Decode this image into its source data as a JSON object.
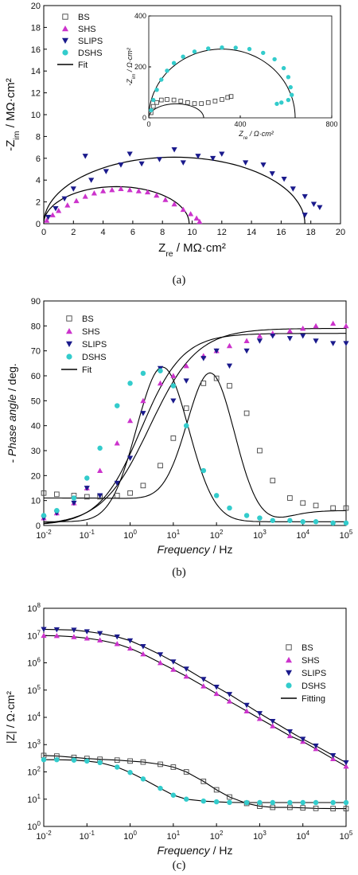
{
  "colors": {
    "BS": "#444444",
    "SHS": "#cc33cc",
    "SLIPS": "#1a1a8c",
    "DSHS": "#33cccc",
    "Fit": "#000000"
  },
  "chart_data": [
    {
      "id": "a",
      "type": "scatter",
      "caption": "(a)",
      "xlabel": "Z_re / MΩ·cm²",
      "ylabel": "-Z_im / MΩ·cm²",
      "xlim": [
        0,
        20
      ],
      "ylim": [
        0,
        20
      ],
      "xticks": [
        0,
        2,
        4,
        6,
        8,
        10,
        12,
        14,
        16,
        18,
        20
      ],
      "yticks": [
        0,
        2,
        4,
        6,
        8,
        10,
        12,
        14,
        16,
        18,
        20
      ],
      "legend": [
        "BS",
        "SHS",
        "SLIPS",
        "DSHS",
        "Fit"
      ],
      "legend_position": "top-left",
      "series": [
        {
          "name": "SHS",
          "marker": "triangle-up",
          "points": [
            [
              0.2,
              0.3
            ],
            [
              0.6,
              0.8
            ],
            [
              1.0,
              1.2
            ],
            [
              1.6,
              1.7
            ],
            [
              2.2,
              2.1
            ],
            [
              2.8,
              2.5
            ],
            [
              3.4,
              2.8
            ],
            [
              4.0,
              3.0
            ],
            [
              4.6,
              3.1
            ],
            [
              5.2,
              3.2
            ],
            [
              5.8,
              3.1
            ],
            [
              6.4,
              3.0
            ],
            [
              7.0,
              2.9
            ],
            [
              7.6,
              2.6
            ],
            [
              8.2,
              2.2
            ],
            [
              8.8,
              1.8
            ],
            [
              9.4,
              1.3
            ],
            [
              9.9,
              0.9
            ],
            [
              10.3,
              0.5
            ],
            [
              10.5,
              0.2
            ]
          ]
        },
        {
          "name": "SLIPS",
          "marker": "triangle-down",
          "points": [
            [
              0.3,
              0.6
            ],
            [
              0.8,
              1.4
            ],
            [
              1.4,
              2.3
            ],
            [
              2.0,
              3.2
            ],
            [
              2.8,
              6.2
            ],
            [
              3.2,
              4.0
            ],
            [
              4.2,
              4.8
            ],
            [
              5.2,
              5.4
            ],
            [
              5.8,
              6.4
            ],
            [
              6.6,
              5.5
            ],
            [
              7.8,
              5.9
            ],
            [
              8.8,
              6.8
            ],
            [
              9.4,
              5.6
            ],
            [
              10.4,
              6.2
            ],
            [
              11.4,
              6.0
            ],
            [
              12.0,
              6.4
            ],
            [
              13.6,
              5.6
            ],
            [
              14.8,
              5.4
            ],
            [
              15.4,
              4.6
            ],
            [
              16.2,
              4.1
            ],
            [
              16.8,
              3.2
            ],
            [
              17.6,
              2.5
            ],
            [
              18.2,
              1.8
            ],
            [
              18.6,
              1.5
            ],
            [
              17.6,
              0.8
            ]
          ]
        },
        {
          "name": "Fit",
          "line": true,
          "arcs": [
            [
              0,
              9.8
            ],
            [
              0,
              17.6
            ]
          ]
        }
      ],
      "inset": {
        "xlabel": "Z_re / Ω·cm²",
        "ylabel": "-Z_im / Ω·cm²",
        "xlim": [
          0,
          800
        ],
        "ylim": [
          0,
          400
        ],
        "xticks": [
          0,
          400,
          800
        ],
        "yticks": [
          0,
          200,
          400
        ],
        "series": [
          {
            "name": "BS",
            "marker": "square-open",
            "points": [
              [
                10,
                20
              ],
              [
                20,
                45
              ],
              [
                35,
                60
              ],
              [
                55,
                70
              ],
              [
                80,
                72
              ],
              [
                110,
                70
              ],
              [
                140,
                66
              ],
              [
                170,
                60
              ],
              [
                200,
                56
              ],
              [
                230,
                56
              ],
              [
                260,
                60
              ],
              [
                290,
                66
              ],
              [
                320,
                72
              ],
              [
                345,
                80
              ],
              [
                360,
                84
              ]
            ]
          },
          {
            "name": "DSHS",
            "marker": "circle",
            "points": [
              [
                10,
                30
              ],
              [
                20,
                70
              ],
              [
                35,
                110
              ],
              [
                55,
                150
              ],
              [
                80,
                185
              ],
              [
                110,
                215
              ],
              [
                150,
                240
              ],
              [
                200,
                260
              ],
              [
                260,
                272
              ],
              [
                320,
                276
              ],
              [
                380,
                275
              ],
              [
                440,
                270
              ],
              [
                500,
                255
              ],
              [
                550,
                230
              ],
              [
                590,
                195
              ],
              [
                610,
                160
              ],
              [
                620,
                120
              ],
              [
                625,
                90
              ],
              [
                610,
                70
              ],
              [
                580,
                60
              ],
              [
                560,
                55
              ]
            ]
          },
          {
            "name": "Fit",
            "line": true,
            "arcs": [
              [
                0,
                640
              ],
              [
                0,
                240
              ]
            ]
          }
        ]
      }
    },
    {
      "id": "b",
      "type": "scatter",
      "caption": "(b)",
      "xlabel": "Frequency / Hz",
      "ylabel": "- Phase angle / deg.",
      "xscale": "log",
      "xlim": [
        0.01,
        100000
      ],
      "ylim": [
        0,
        90
      ],
      "xtick_labels": [
        "10⁻²",
        "10⁻¹",
        "10⁰",
        "10¹",
        "10²",
        "10³",
        "10⁴",
        "10⁵"
      ],
      "yticks": [
        0,
        10,
        20,
        30,
        40,
        50,
        60,
        70,
        80,
        90
      ],
      "legend": [
        "BS",
        "SHS",
        "SLIPS",
        "DSHS",
        "Fit"
      ],
      "legend_position": "top-left",
      "series": [
        {
          "name": "BS",
          "marker": "square-open",
          "x": [
            0.01,
            0.02,
            0.05,
            0.1,
            0.2,
            0.5,
            1,
            2,
            5,
            10,
            20,
            50,
            100,
            200,
            500,
            1000,
            2000,
            5000,
            10000,
            20000,
            50000,
            100000
          ],
          "y": [
            13,
            12.5,
            12,
            11.5,
            11.5,
            12,
            13,
            16,
            24,
            35,
            47,
            57,
            59,
            56,
            45,
            30,
            18,
            11,
            9,
            8,
            7,
            7
          ]
        },
        {
          "name": "SHS",
          "marker": "triangle-up",
          "x": [
            0.01,
            0.02,
            0.05,
            0.1,
            0.2,
            0.5,
            1,
            2,
            5,
            10,
            20,
            50,
            100,
            200,
            500,
            1000,
            2000,
            5000,
            10000,
            20000,
            50000,
            100000
          ],
          "y": [
            3,
            5,
            9,
            15,
            22,
            33,
            42,
            50,
            57,
            60,
            64,
            68,
            70,
            72,
            74,
            76,
            77,
            78,
            79,
            80,
            81,
            80
          ]
        },
        {
          "name": "SLIPS",
          "marker": "triangle-down",
          "x": [
            0.01,
            0.02,
            0.05,
            0.1,
            0.2,
            0.5,
            1,
            2,
            5,
            10,
            20,
            50,
            100,
            200,
            500,
            1000,
            2000,
            5000,
            10000,
            20000,
            50000,
            100000
          ],
          "y": [
            3,
            5,
            9,
            15,
            12,
            17,
            27,
            45,
            63,
            50,
            58,
            67,
            70,
            64,
            70,
            74,
            76,
            75,
            76,
            74,
            73,
            73
          ]
        },
        {
          "name": "DSHS",
          "marker": "circle",
          "x": [
            0.01,
            0.02,
            0.05,
            0.1,
            0.2,
            0.5,
            1,
            2,
            5,
            10,
            20,
            50,
            100,
            200,
            500,
            1000,
            2000,
            5000,
            10000,
            20000,
            50000,
            100000
          ],
          "y": [
            4,
            6,
            11,
            19,
            31,
            48,
            57,
            61,
            62,
            56,
            40,
            22,
            12,
            7,
            4,
            3,
            2,
            2,
            1.5,
            1.5,
            1,
            1
          ]
        }
      ]
    },
    {
      "id": "c",
      "type": "scatter",
      "caption": "(c)",
      "xlabel": "Frequency / Hz",
      "ylabel": "|Z| / Ω·cm²",
      "xscale": "log",
      "yscale": "log",
      "xlim": [
        0.01,
        100000
      ],
      "ylim": [
        1,
        100000000
      ],
      "xtick_labels": [
        "10⁻²",
        "10⁻¹",
        "10⁰",
        "10¹",
        "10²",
        "10³",
        "10⁴",
        "10⁵"
      ],
      "ytick_labels": [
        "10⁰",
        "10¹",
        "10²",
        "10³",
        "10⁴",
        "10⁵",
        "10⁶",
        "10⁷",
        "10⁸"
      ],
      "legend": [
        "BS",
        "SHS",
        "SLIPS",
        "DSHS",
        "Fitting"
      ],
      "legend_position": "top-right",
      "series": [
        {
          "name": "BS",
          "marker": "square-open",
          "x": [
            0.01,
            0.02,
            0.05,
            0.1,
            0.2,
            0.5,
            1,
            2,
            5,
            10,
            20,
            50,
            100,
            200,
            500,
            1000,
            2000,
            5000,
            10000,
            20000,
            50000,
            100000
          ],
          "y": [
            400,
            380,
            340,
            310,
            290,
            270,
            250,
            230,
            190,
            150,
            100,
            45,
            22,
            12,
            7,
            5.5,
            5,
            5,
            4.8,
            4.6,
            4.5,
            4.5
          ]
        },
        {
          "name": "SHS",
          "marker": "triangle-up",
          "x": [
            0.01,
            0.02,
            0.05,
            0.1,
            0.2,
            0.5,
            1,
            2,
            5,
            10,
            20,
            50,
            100,
            200,
            500,
            1000,
            2000,
            5000,
            10000,
            20000,
            50000,
            100000
          ],
          "y": [
            10000000,
            9800000,
            9000000,
            8000000,
            6800000,
            5000000,
            3400000,
            2100000,
            1000000,
            570000,
            320000,
            140000,
            74000,
            39000,
            17000,
            9000,
            4800,
            2100,
            1300,
            700,
            300,
            160
          ]
        },
        {
          "name": "SLIPS",
          "marker": "triangle-down",
          "x": [
            0.01,
            0.02,
            0.05,
            0.1,
            0.2,
            0.5,
            1,
            2,
            5,
            10,
            20,
            50,
            100,
            200,
            500,
            1000,
            2000,
            5000,
            10000,
            20000,
            50000,
            100000
          ],
          "y": [
            17000000,
            16500000,
            16000000,
            14000000,
            12000000,
            9000000,
            6500000,
            4000000,
            2000000,
            1100000,
            600000,
            250000,
            130000,
            70000,
            28000,
            14000,
            7200,
            3000,
            1600,
            900,
            400,
            220
          ]
        },
        {
          "name": "DSHS",
          "marker": "circle",
          "x": [
            0.01,
            0.02,
            0.05,
            0.1,
            0.2,
            0.5,
            1,
            2,
            5,
            10,
            20,
            50,
            100,
            200,
            500,
            1000,
            2000,
            5000,
            10000,
            20000,
            50000,
            100000
          ],
          "y": [
            280,
            280,
            270,
            250,
            220,
            150,
            95,
            55,
            25,
            14,
            10,
            8.5,
            8,
            7.6,
            7.5,
            7.5,
            7.5,
            7.5,
            7.5,
            7.5,
            7.5,
            7.5
          ]
        }
      ]
    }
  ]
}
